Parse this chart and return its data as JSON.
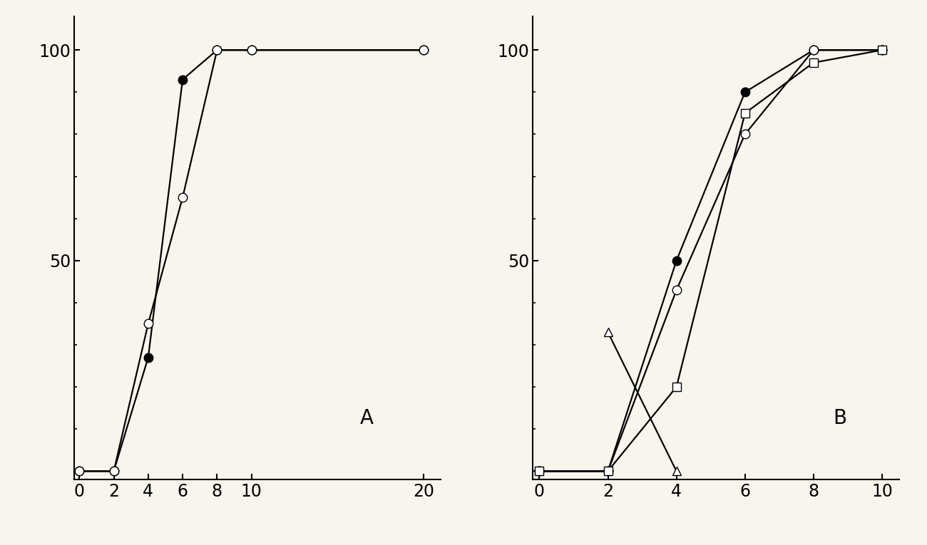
{
  "plot_A": {
    "label": "A",
    "x_ticks": [
      0,
      2,
      4,
      6,
      8,
      10,
      20
    ],
    "x_tick_labels": [
      "0",
      "2",
      "4",
      "6",
      "8",
      "10",
      "20"
    ],
    "xlim": [
      -0.3,
      21
    ],
    "ylim": [
      -2,
      108
    ],
    "y_ticks": [
      50,
      100
    ],
    "y_tick_labels": [
      "50",
      "100"
    ],
    "series": [
      {
        "x": [
          0,
          2,
          4,
          6,
          8,
          10,
          20
        ],
        "y": [
          0,
          0,
          27,
          93,
          100,
          100,
          100
        ],
        "marker": "o",
        "filled": true
      },
      {
        "x": [
          0,
          2,
          4,
          6,
          8,
          10,
          20
        ],
        "y": [
          0,
          0,
          35,
          65,
          100,
          100,
          100
        ],
        "marker": "o",
        "filled": false
      }
    ]
  },
  "plot_B": {
    "label": "B",
    "x_ticks": [
      0,
      2,
      4,
      6,
      8,
      10
    ],
    "x_tick_labels": [
      "0",
      "2",
      "4",
      "6",
      "8",
      "10"
    ],
    "xlim": [
      -0.2,
      10.5
    ],
    "ylim": [
      -2,
      108
    ],
    "y_ticks": [
      50,
      100
    ],
    "y_tick_labels": [
      "50",
      "100"
    ],
    "series": [
      {
        "x": [
          0,
          2,
          4,
          6,
          8,
          10
        ],
        "y": [
          0,
          0,
          50,
          90,
          100,
          100
        ],
        "marker": "o",
        "filled": true
      },
      {
        "x": [
          0,
          2,
          4,
          6,
          8,
          10
        ],
        "y": [
          0,
          0,
          43,
          80,
          100,
          100
        ],
        "marker": "o",
        "filled": false
      },
      {
        "x": [
          0,
          2,
          4,
          6,
          8,
          10
        ],
        "y": [
          0,
          0,
          20,
          85,
          97,
          100
        ],
        "marker": "s",
        "filled": false
      },
      {
        "x": [
          2,
          4
        ],
        "y": [
          33,
          0
        ],
        "marker": "^",
        "filled": false,
        "triangle_only": true
      }
    ]
  },
  "bg_color": "#f8f5ee",
  "line_width": 1.6,
  "marker_size": 9,
  "font_size": 17,
  "label_fontsize": 20
}
